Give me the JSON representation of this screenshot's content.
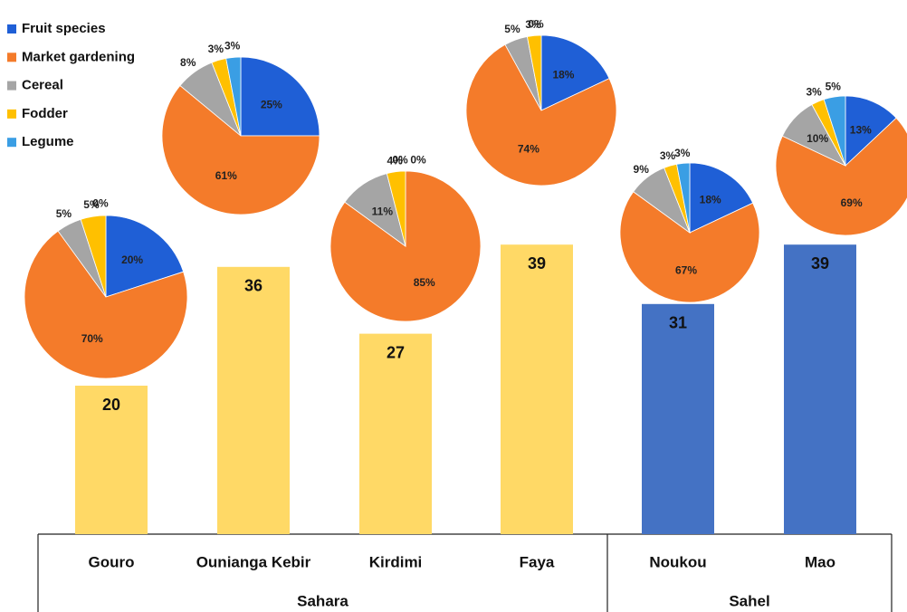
{
  "chart_data": [
    {
      "type": "bar",
      "categories": [
        "Gouro",
        "Ounianga Kebir",
        "Kirdimi",
        "Faya",
        "Noukou",
        "Mao"
      ],
      "series": [
        {
          "name": "Sahara",
          "color": "#ffd966",
          "values": [
            20,
            36,
            27,
            39,
            null,
            null
          ]
        },
        {
          "name": "Sahel",
          "color": "#4472c4",
          "values": [
            null,
            null,
            null,
            null,
            31,
            39
          ]
        }
      ]
    },
    {
      "type": "pie",
      "categories": [
        "Fruit species",
        "Market gardening",
        "Cereal",
        "Fodder",
        "Legume"
      ],
      "colors": [
        "#1f5fd6",
        "#f47b2a",
        "#a5a5a5",
        "#ffc000",
        "#3a9ee4"
      ],
      "series": [
        {
          "values": [
            20,
            70,
            5,
            5,
            0
          ],
          "value_labels": [
            "20%",
            "70%",
            "5%",
            "5%",
            "0%"
          ]
        },
        {
          "values": [
            25,
            61,
            8,
            3,
            3
          ],
          "value_labels": [
            "25%",
            "61%",
            "8%",
            "3%",
            "3%"
          ]
        },
        {
          "values": [
            0,
            85,
            11,
            4,
            0
          ],
          "value_labels": [
            "0%",
            "85%",
            "11%",
            "4%",
            "0%"
          ]
        },
        {
          "values": [
            18,
            74,
            5,
            3,
            0
          ],
          "value_labels": [
            "18%",
            "74%",
            "5%",
            "3%",
            "0%"
          ]
        },
        {
          "values": [
            18,
            67,
            9,
            3,
            3
          ],
          "value_labels": [
            "18%",
            "67%",
            "9%",
            "3%",
            "3%"
          ]
        },
        {
          "values": [
            13,
            69,
            10,
            3,
            5
          ],
          "value_labels": [
            "13%",
            "69%",
            "10%",
            "3%",
            "5%"
          ]
        }
      ]
    }
  ]
}
